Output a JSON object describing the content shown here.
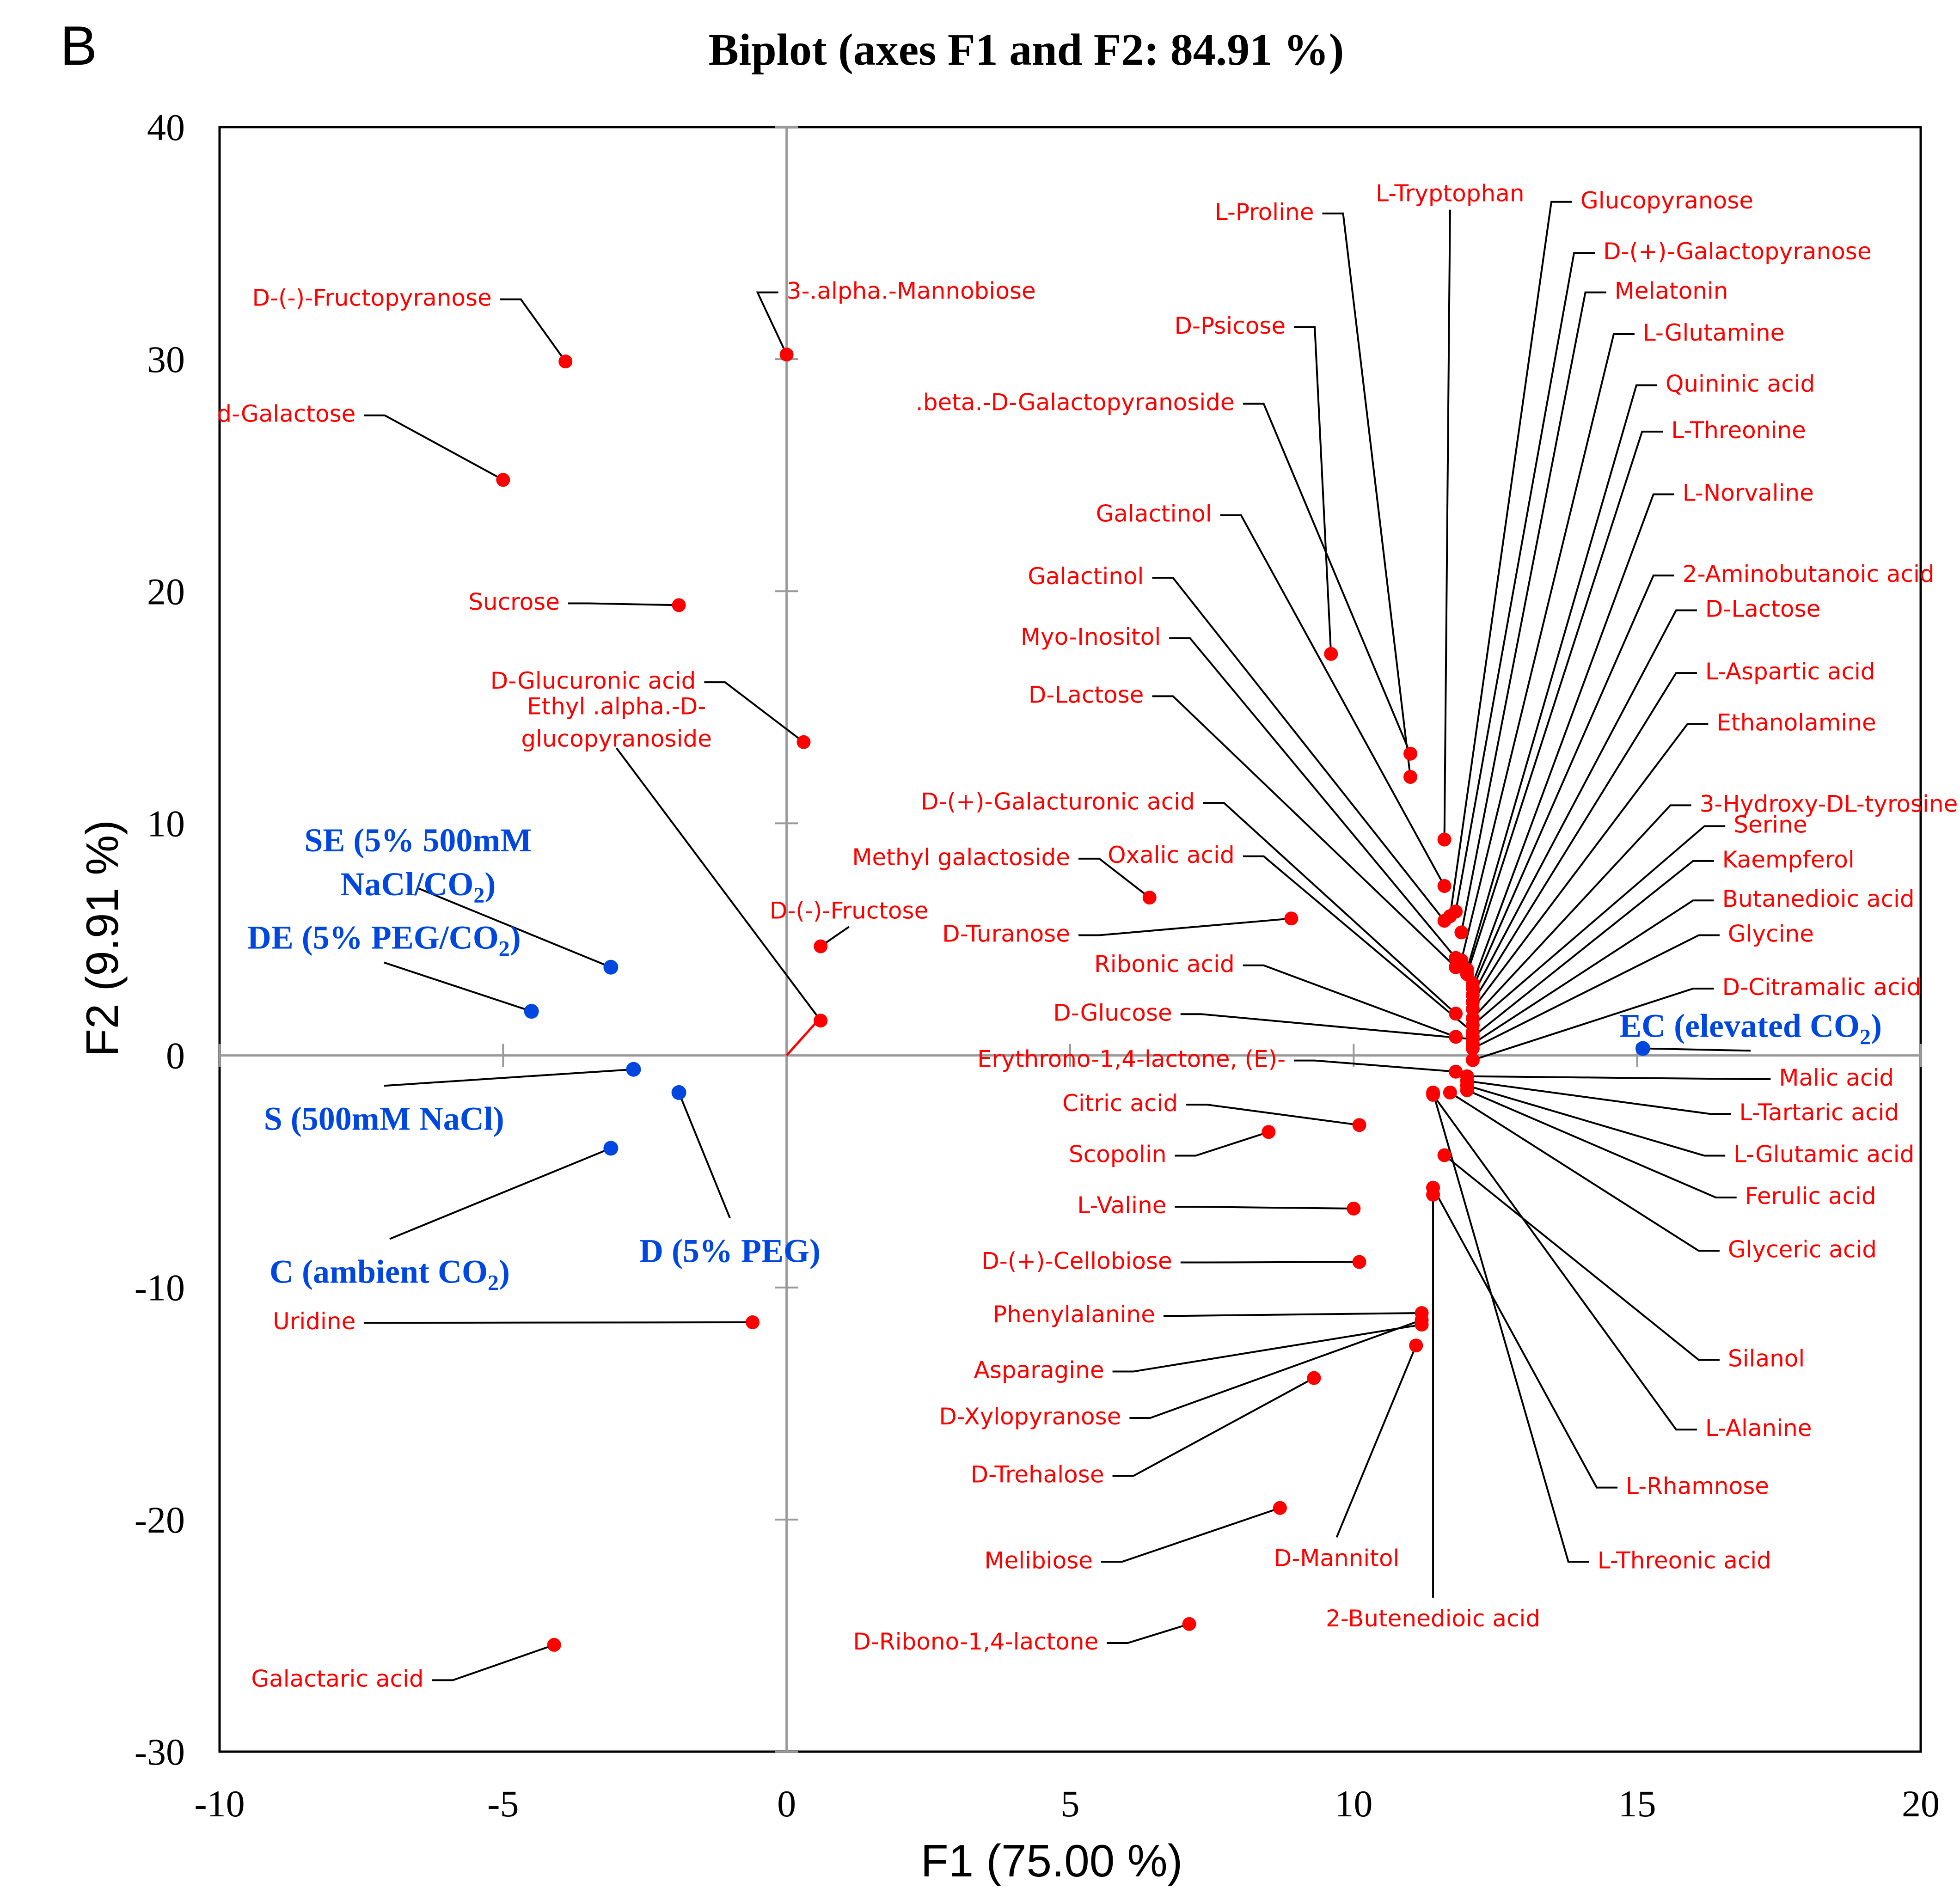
{
  "panel_label": "B",
  "colors": {
    "variables": "#ff0000",
    "observations": "#0047e0",
    "leader": "#000000",
    "axis": "#9a9a9a"
  },
  "chart_data": {
    "type": "scatter",
    "title": "Biplot (axes F1 and F2: 84.91 %)",
    "xlabel": "F1 (75.00 %)",
    "ylabel": "F2 (9.91 %)",
    "xlim": [
      -10,
      20
    ],
    "ylim": [
      -30,
      40
    ],
    "xticks": [
      -10,
      -5,
      0,
      5,
      10,
      15,
      20
    ],
    "yticks": [
      -30,
      -20,
      -10,
      0,
      10,
      20,
      30,
      40
    ],
    "grid": false,
    "observations": [
      {
        "label": "SE (5% 500mM NaCl/CO2)",
        "lines": [
          "SE (5% 500mM",
          "NaCl/CO",
          "2",
          ")"
        ],
        "x": -3.1,
        "y": 3.8,
        "lx": -6.5,
        "ly": 7.8,
        "anchor": "middle"
      },
      {
        "label": "DE (5% PEG/CO2)",
        "lines": [
          "DE (5% PEG/CO",
          "2",
          ")"
        ],
        "x": -4.5,
        "y": 1.9,
        "lx": -7.1,
        "ly": 4.6,
        "anchor": "middle"
      },
      {
        "label": "S (500mM NaCl)",
        "lines": [
          "S (500mM NaCl)"
        ],
        "x": -2.7,
        "y": -0.6,
        "lx": -7.1,
        "ly": -3.2,
        "anchor": "middle"
      },
      {
        "label": "D (5% PEG)",
        "lines": [
          "D (5% PEG)"
        ],
        "x": -1.9,
        "y": -1.6,
        "lx": -1.0,
        "ly": -8.9,
        "anchor": "middle"
      },
      {
        "label": "C (ambient CO2)",
        "lines": [
          "C (ambient CO",
          "2",
          ")"
        ],
        "x": -3.1,
        "y": -4.0,
        "lx": -7.0,
        "ly": -9.8,
        "anchor": "middle"
      },
      {
        "label": "EC (elevated CO2)",
        "lines": [
          "EC (elevated CO",
          "2",
          ")"
        ],
        "x": 15.1,
        "y": 0.3,
        "lx": 17.0,
        "ly": 0.8,
        "anchor": "middle"
      }
    ],
    "variables": [
      {
        "label": "D-(-)-Fructopyranose",
        "x": -3.9,
        "y": 29.9,
        "lx": -5.2,
        "ly": 32.3,
        "anchor": "end"
      },
      {
        "label": "3-.alpha.-Mannobiose",
        "x": 0.0,
        "y": 30.2,
        "lx": 0.0,
        "ly": 32.6,
        "anchor": "start"
      },
      {
        "label": "d-Galactose",
        "x": -5.0,
        "y": 24.8,
        "lx": -7.6,
        "ly": 27.3,
        "anchor": "end"
      },
      {
        "label": "Sucrose",
        "x": -1.9,
        "y": 19.4,
        "lx": -4.0,
        "ly": 19.2,
        "anchor": "end"
      },
      {
        "label": "D-Glucuronic acid",
        "x": 0.3,
        "y": 13.5,
        "lx": -1.6,
        "ly": 15.8,
        "anchor": "end"
      },
      {
        "label": "Ethyl .alpha.-D-glucopyranoside",
        "lines": [
          "Ethyl .alpha.-D-",
          "glucopyranoside"
        ],
        "x": 0.6,
        "y": 1.5,
        "lx": -3.0,
        "ly": 13.6,
        "anchor": "middle"
      },
      {
        "label": "D-(-)-Fructose",
        "x": 0.6,
        "y": 4.7,
        "lx": 1.1,
        "ly": 5.9,
        "anchor": "middle"
      },
      {
        "label": "Uridine",
        "x": -0.6,
        "y": -11.5,
        "lx": -7.6,
        "ly": -11.8,
        "anchor": "end"
      },
      {
        "label": "Galactaric acid",
        "x": -4.1,
        "y": -25.4,
        "lx": -6.4,
        "ly": -27.2,
        "anchor": "end"
      },
      {
        "label": "L-Proline",
        "x": 11.0,
        "y": 12.0,
        "lx": 9.3,
        "ly": 36.0,
        "anchor": "end"
      },
      {
        "label": "L-Tryptophan",
        "x": 11.6,
        "y": 9.3,
        "lx": 11.7,
        "ly": 36.8,
        "anchor": "middle"
      },
      {
        "label": "Glucopyranose",
        "x": 11.7,
        "y": 6.0,
        "lx": 14.0,
        "ly": 36.5,
        "anchor": "start"
      },
      {
        "label": "D-(+)-Galactopyranose",
        "x": 11.8,
        "y": 6.2,
        "lx": 14.4,
        "ly": 34.3,
        "anchor": "start"
      },
      {
        "label": "Melatonin",
        "x": 11.9,
        "y": 5.3,
        "lx": 14.6,
        "ly": 32.6,
        "anchor": "start"
      },
      {
        "label": "L-Glutamine",
        "x": 11.9,
        "y": 4.1,
        "lx": 15.1,
        "ly": 30.8,
        "anchor": "start"
      },
      {
        "label": "D-Psicose",
        "x": 9.6,
        "y": 17.3,
        "lx": 8.8,
        "ly": 31.1,
        "anchor": "end"
      },
      {
        "label": "Quininic acid",
        "x": 12.0,
        "y": 3.7,
        "lx": 15.5,
        "ly": 28.6,
        "anchor": "start"
      },
      {
        "label": ".beta.-D-Galactopyranoside",
        "x": 11.0,
        "y": 13.0,
        "lx": 7.9,
        "ly": 27.8,
        "anchor": "end"
      },
      {
        "label": "L-Threonine",
        "x": 12.0,
        "y": 3.5,
        "lx": 15.6,
        "ly": 26.6,
        "anchor": "start"
      },
      {
        "label": "L-Norvaline",
        "x": 12.1,
        "y": 3.1,
        "lx": 15.8,
        "ly": 23.9,
        "anchor": "start"
      },
      {
        "label": "Galactinol",
        "x": 11.6,
        "y": 7.3,
        "lx": 7.5,
        "ly": 23.0,
        "anchor": "end"
      },
      {
        "label": "2-Aminobutanoic acid",
        "x": 12.1,
        "y": 2.9,
        "lx": 15.8,
        "ly": 20.4,
        "anchor": "start"
      },
      {
        "label": "Galactinol",
        "x": 11.6,
        "y": 5.8,
        "lx": 6.3,
        "ly": 20.3,
        "anchor": "end"
      },
      {
        "label": "D-Lactose",
        "x": 12.1,
        "y": 2.6,
        "lx": 16.2,
        "ly": 18.9,
        "anchor": "start"
      },
      {
        "label": "Myo-Inositol",
        "x": 11.8,
        "y": 4.2,
        "lx": 6.6,
        "ly": 17.7,
        "anchor": "end"
      },
      {
        "label": "L-Aspartic acid",
        "x": 12.1,
        "y": 2.3,
        "lx": 16.2,
        "ly": 16.2,
        "anchor": "start"
      },
      {
        "label": "D-Lactose",
        "x": 11.8,
        "y": 3.8,
        "lx": 6.3,
        "ly": 15.2,
        "anchor": "end"
      },
      {
        "label": "Ethanolamine",
        "x": 12.1,
        "y": 2.0,
        "lx": 16.4,
        "ly": 14.0,
        "anchor": "start"
      },
      {
        "label": "D-(+)-Galacturonic acid",
        "x": 11.8,
        "y": 1.8,
        "lx": 7.2,
        "ly": 10.6,
        "anchor": "end"
      },
      {
        "label": "3-Hydroxy-DL-tyrosine",
        "x": 12.1,
        "y": 1.6,
        "lx": 16.1,
        "ly": 10.5,
        "anchor": "start"
      },
      {
        "label": "Serine",
        "x": 12.1,
        "y": 1.3,
        "lx": 16.7,
        "ly": 9.6,
        "anchor": "start"
      },
      {
        "label": "Methyl galactoside",
        "x": 6.4,
        "y": 6.8,
        "lx": 5.0,
        "ly": 8.2,
        "anchor": "end"
      },
      {
        "label": "Oxalic acid",
        "x": 12.1,
        "y": 1.0,
        "lx": 7.9,
        "ly": 8.3,
        "anchor": "end"
      },
      {
        "label": "Kaempferol",
        "x": 12.1,
        "y": 0.8,
        "lx": 16.5,
        "ly": 8.1,
        "anchor": "start"
      },
      {
        "label": "Butanedioic acid",
        "x": 12.1,
        "y": 0.5,
        "lx": 16.5,
        "ly": 6.4,
        "anchor": "start"
      },
      {
        "label": "D-Turanose",
        "x": 8.9,
        "y": 5.9,
        "lx": 5.0,
        "ly": 4.9,
        "anchor": "end"
      },
      {
        "label": "Glycine",
        "x": 12.1,
        "y": 0.3,
        "lx": 16.6,
        "ly": 4.9,
        "anchor": "start"
      },
      {
        "label": "Ribonic acid",
        "x": 11.8,
        "y": 0.8,
        "lx": 7.9,
        "ly": 3.6,
        "anchor": "end"
      },
      {
        "label": "D-Citramalic acid",
        "x": 12.1,
        "y": -0.2,
        "lx": 16.5,
        "ly": 2.6,
        "anchor": "start"
      },
      {
        "label": "D-Glucose",
        "x": 12.1,
        "y": 0.7,
        "lx": 6.8,
        "ly": 1.5,
        "anchor": "end"
      },
      {
        "label": "Erythrono-1,4-lactone, (E)-",
        "x": 11.8,
        "y": -0.7,
        "lx": 8.8,
        "ly": -0.5,
        "anchor": "end"
      },
      {
        "label": "Malic acid",
        "x": 12.0,
        "y": -0.9,
        "lx": 17.5,
        "ly": -1.3,
        "anchor": "start"
      },
      {
        "label": "Citric acid",
        "x": 10.1,
        "y": -3.0,
        "lx": 6.9,
        "ly": -2.4,
        "anchor": "end"
      },
      {
        "label": "L-Tartaric acid",
        "x": 12.0,
        "y": -1.1,
        "lx": 16.8,
        "ly": -2.8,
        "anchor": "start"
      },
      {
        "label": "Scopolin",
        "x": 8.5,
        "y": -3.3,
        "lx": 6.7,
        "ly": -4.6,
        "anchor": "end"
      },
      {
        "label": "L-Glutamic acid",
        "x": 12.0,
        "y": -1.3,
        "lx": 16.7,
        "ly": -4.6,
        "anchor": "start"
      },
      {
        "label": "Ferulic acid",
        "x": 12.0,
        "y": -1.5,
        "lx": 16.9,
        "ly": -6.4,
        "anchor": "start"
      },
      {
        "label": "L-Valine",
        "x": 10.0,
        "y": -6.6,
        "lx": 6.7,
        "ly": -6.8,
        "anchor": "end"
      },
      {
        "label": "Glyceric acid",
        "x": 11.7,
        "y": -1.6,
        "lx": 16.6,
        "ly": -8.7,
        "anchor": "start"
      },
      {
        "label": "D-(+)-Cellobiose",
        "x": 10.1,
        "y": -8.9,
        "lx": 6.8,
        "ly": -9.2,
        "anchor": "end"
      },
      {
        "label": "Phenylalanine",
        "x": 11.2,
        "y": -11.1,
        "lx": 6.5,
        "ly": -11.5,
        "anchor": "end"
      },
      {
        "label": "Silanol",
        "x": 11.6,
        "y": -4.3,
        "lx": 16.6,
        "ly": -13.4,
        "anchor": "start"
      },
      {
        "label": "Asparagine",
        "x": 11.2,
        "y": -11.6,
        "lx": 5.6,
        "ly": -13.9,
        "anchor": "end"
      },
      {
        "label": "D-Xylopyranose",
        "x": 11.2,
        "y": -11.4,
        "lx": 5.9,
        "ly": -15.9,
        "anchor": "end"
      },
      {
        "label": "L-Alanine",
        "x": 11.4,
        "y": -1.7,
        "lx": 16.2,
        "ly": -16.4,
        "anchor": "start"
      },
      {
        "label": "D-Trehalose",
        "x": 9.3,
        "y": -13.9,
        "lx": 5.6,
        "ly": -18.4,
        "anchor": "end"
      },
      {
        "label": "L-Rhamnose",
        "x": 11.4,
        "y": -5.7,
        "lx": 14.8,
        "ly": -18.9,
        "anchor": "start"
      },
      {
        "label": "Melibiose",
        "x": 8.7,
        "y": -19.5,
        "lx": 5.4,
        "ly": -22.1,
        "anchor": "end"
      },
      {
        "label": "D-Mannitol",
        "x": 11.1,
        "y": -12.5,
        "lx": 9.7,
        "ly": -22.0,
        "anchor": "middle"
      },
      {
        "label": "L-Threonic acid",
        "x": 11.4,
        "y": -1.6,
        "lx": 14.3,
        "ly": -22.1,
        "anchor": "start"
      },
      {
        "label": "2-Butenedioic acid",
        "x": 11.4,
        "y": -6.0,
        "lx": 11.4,
        "ly": -24.6,
        "anchor": "middle"
      },
      {
        "label": "D-Ribono-1,4-lactone",
        "x": 7.1,
        "y": -24.5,
        "lx": 5.5,
        "ly": -25.6,
        "anchor": "end"
      }
    ],
    "origin_vector": {
      "x": 0.55,
      "y": 1.5
    }
  }
}
